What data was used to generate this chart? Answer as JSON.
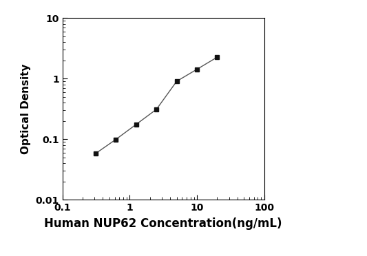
{
  "x_values": [
    0.313,
    0.625,
    1.25,
    2.5,
    5.0,
    10.0,
    20.0
  ],
  "y_values": [
    0.058,
    0.099,
    0.175,
    0.31,
    0.9,
    1.42,
    2.25
  ],
  "xlabel": "Human NUP62 Concentration(ng/mL)",
  "ylabel": "Optical Density",
  "xlim": [
    0.1,
    100
  ],
  "ylim": [
    0.01,
    10
  ],
  "line_color": "#555555",
  "marker_color": "#111111",
  "marker": "s",
  "marker_size": 5,
  "line_width": 1.0,
  "xlabel_fontsize": 12,
  "ylabel_fontsize": 11,
  "tick_labelsize": 10,
  "background_color": "#ffffff"
}
